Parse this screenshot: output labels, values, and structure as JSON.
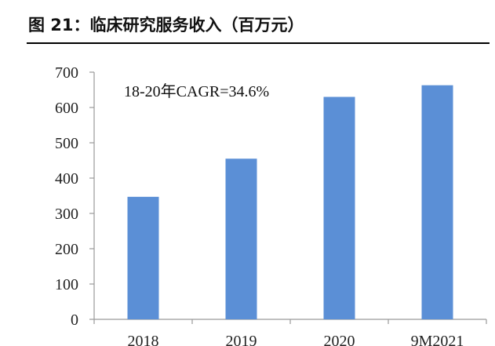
{
  "figure": {
    "title": "图 21：临床研究服务收入（百万元）"
  },
  "chart_data": {
    "type": "bar",
    "categories": [
      "2018",
      "2019",
      "2020",
      "9M2021"
    ],
    "values": [
      347,
      455,
      630,
      663
    ],
    "ylim": [
      0,
      700
    ],
    "yticks": [
      0,
      100,
      200,
      300,
      400,
      500,
      600,
      700
    ],
    "annotation": "18-20年CAGR=34.6%",
    "bar_color": "#5B8FD6",
    "grid": false,
    "legend": null
  }
}
